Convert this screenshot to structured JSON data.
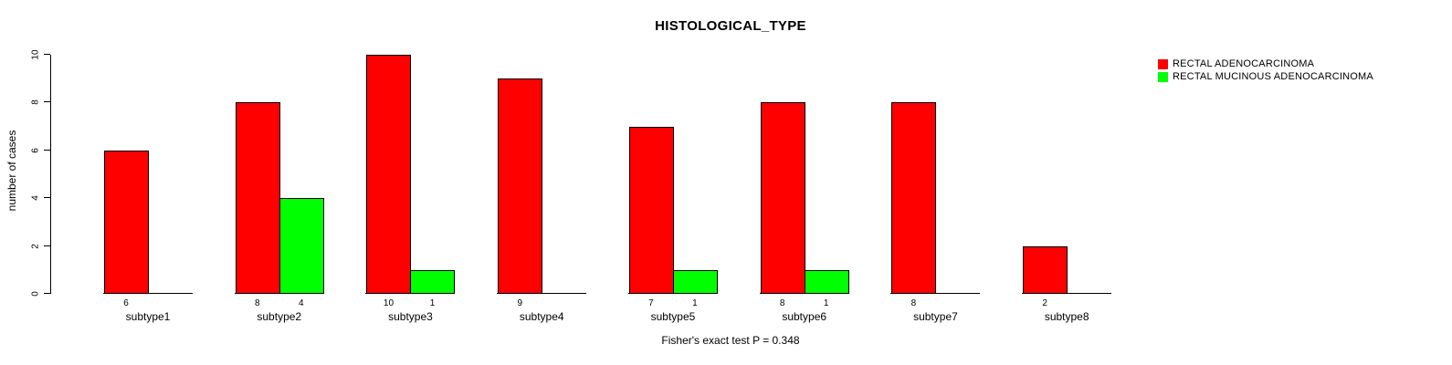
{
  "chart_data": {
    "type": "bar",
    "title": "HISTOLOGICAL_TYPE",
    "ylabel": "number of cases",
    "xlabel": "",
    "categories": [
      "subtype1",
      "subtype2",
      "subtype3",
      "subtype4",
      "subtype5",
      "subtype6",
      "subtype7",
      "subtype8"
    ],
    "series": [
      {
        "name": "RECTAL ADENOCARCINOMA",
        "color": "#ff0000",
        "values": [
          6,
          8,
          10,
          9,
          7,
          8,
          8,
          2
        ]
      },
      {
        "name": "RECTAL MUCINOUS ADENOCARCINOMA",
        "color": "#00ff00",
        "values": [
          0,
          4,
          1,
          0,
          1,
          1,
          0,
          0
        ]
      }
    ],
    "bar_value_labels": {
      "subtype1": [
        6,
        null
      ],
      "subtype2": [
        8,
        4
      ],
      "subtype3": [
        10,
        1
      ],
      "subtype4": [
        9,
        null
      ],
      "subtype5": [
        7,
        1
      ],
      "subtype6": [
        8,
        1
      ],
      "subtype7": [
        8,
        null
      ],
      "subtype8": [
        2,
        null
      ]
    },
    "ylim": [
      0,
      10
    ],
    "yticks": [
      0,
      2,
      4,
      6,
      8,
      10
    ],
    "grid": false,
    "legend_position": "topright",
    "bar_border_color": "#000000",
    "background_color": "#ffffff",
    "annotation": "Fisher's exact test P = 0.348"
  }
}
